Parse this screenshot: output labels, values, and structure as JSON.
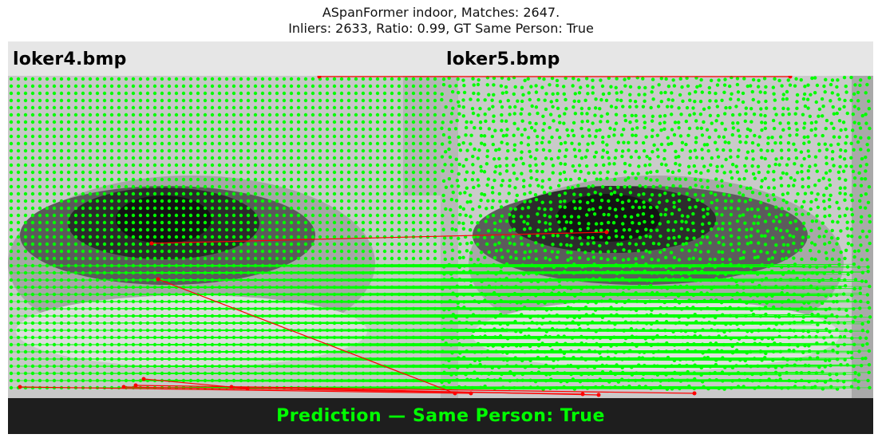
{
  "title": {
    "line1": "ASpanFormer indoor, Matches: 2647.",
    "line2": "Inliers: 2633, Ratio: 0.99, GT Same Person: True"
  },
  "images": {
    "left_label": "loker4.bmp",
    "right_label": "loker5.bmp"
  },
  "prediction": {
    "text": "Prediction — Same Person: True"
  },
  "colors": {
    "inlier": "#00ff00",
    "outlier": "#ff0000",
    "banner_bg": "#1e1e1e",
    "banner_text": "#00ff00"
  }
}
